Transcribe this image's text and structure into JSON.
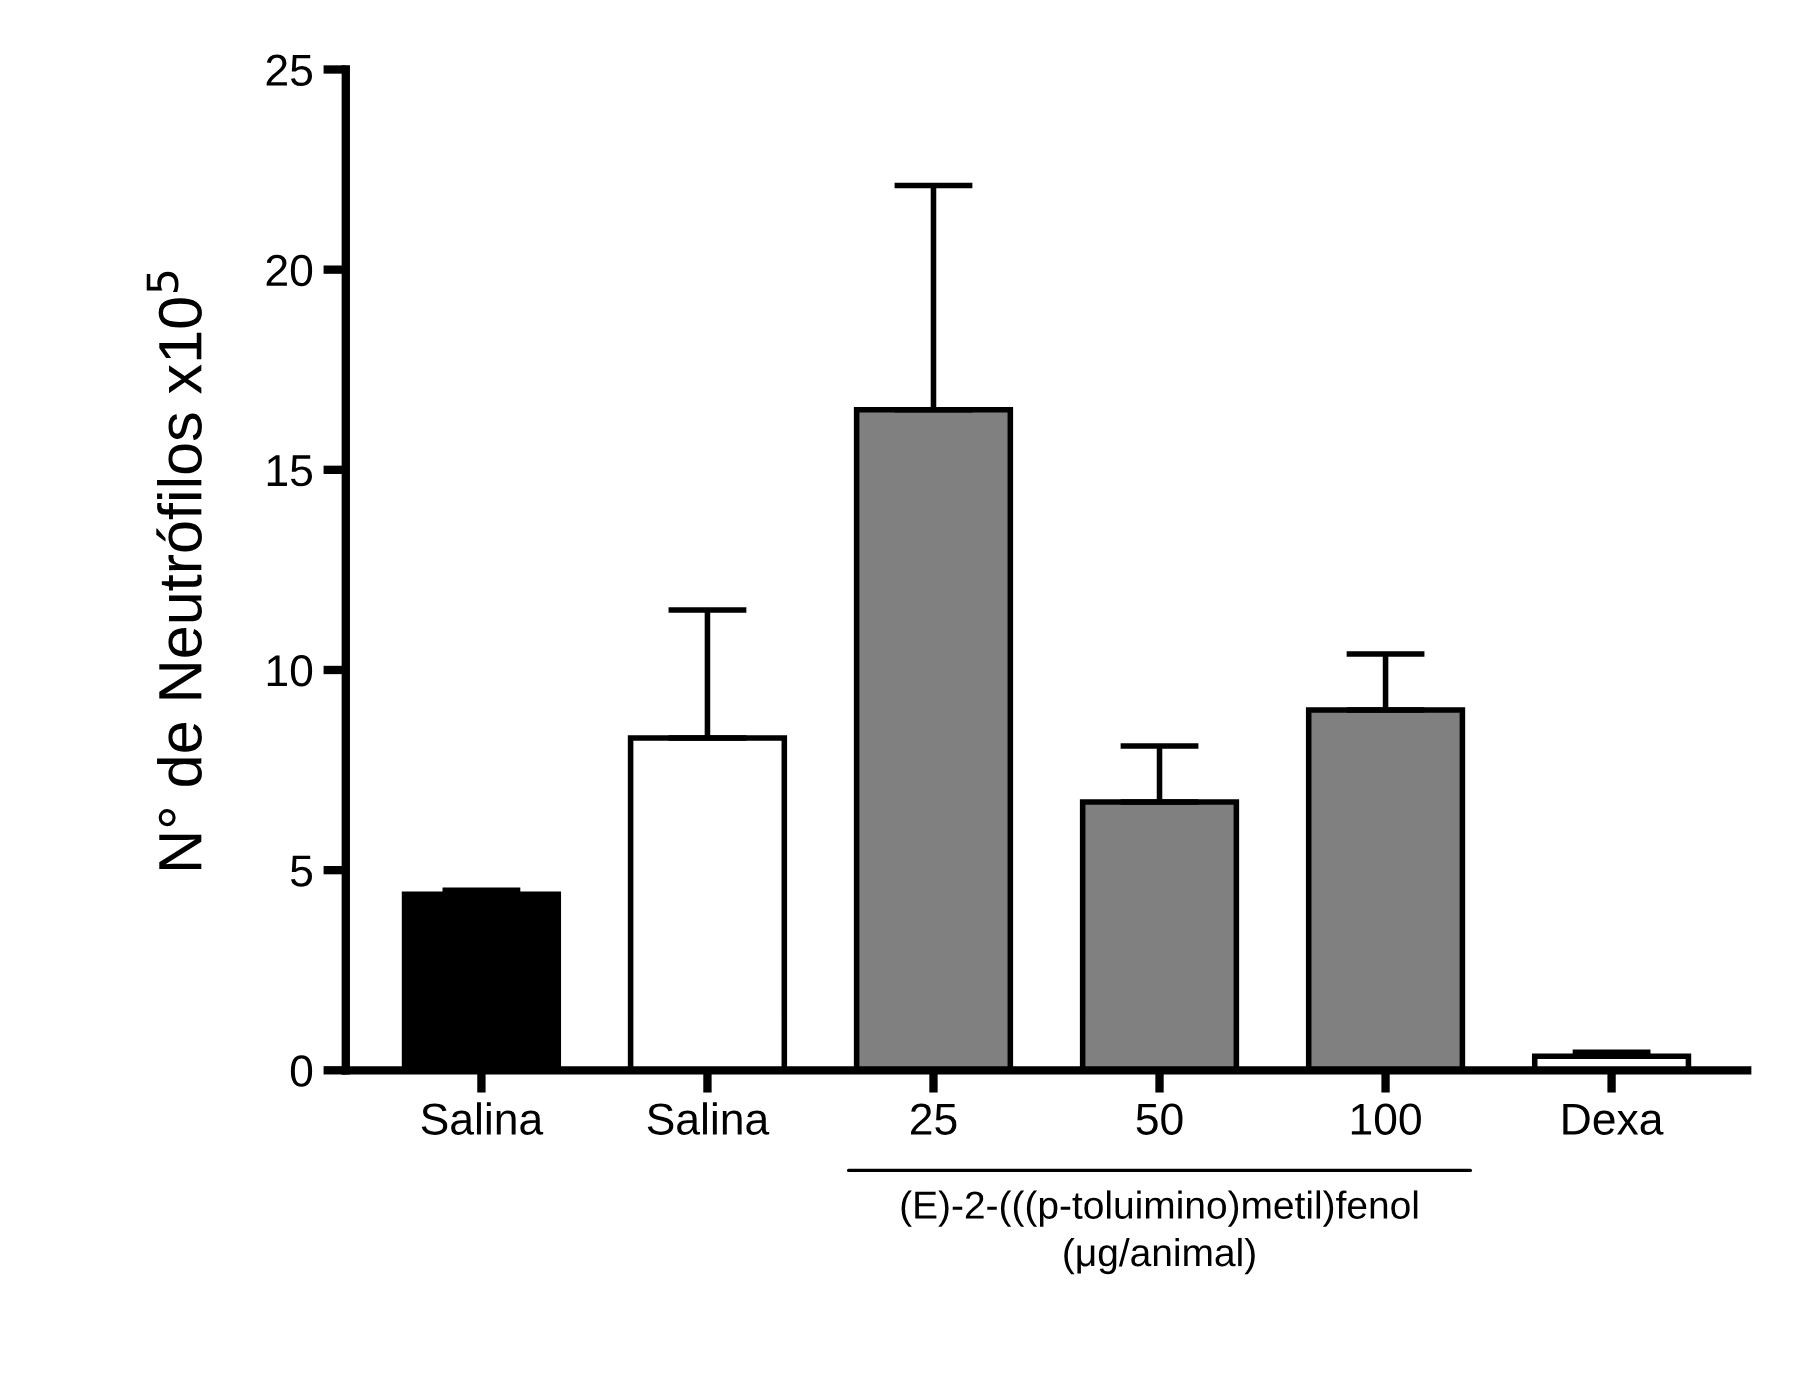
{
  "chart_data": {
    "type": "bar",
    "categories": [
      "Salina",
      "Salina",
      "25",
      "50",
      "100",
      "Dexa"
    ],
    "values": [
      4.4,
      8.3,
      16.5,
      6.7,
      9.0,
      0.35
    ],
    "errors": [
      [
        4.4,
        4.5
      ],
      [
        8.3,
        11.5
      ],
      [
        16.5,
        22.1
      ],
      [
        6.7,
        8.1
      ],
      [
        9.0,
        10.4
      ],
      [
        0.35,
        0.45
      ]
    ],
    "colors": [
      "#000000",
      "#ffffff",
      "#808080",
      "#808080",
      "#808080",
      "#ffffff"
    ],
    "ylabel": "N° de Neutrófilos x10$^{5}$",
    "ylim": [
      0,
      25
    ],
    "yticks": [
      0,
      5,
      10,
      15,
      20,
      25
    ],
    "annotations": [
      "(E)-2-(((p-toluimino)metil)fenol\n(μg/animal)"
    ],
    "grid": false,
    "legend": false
  }
}
